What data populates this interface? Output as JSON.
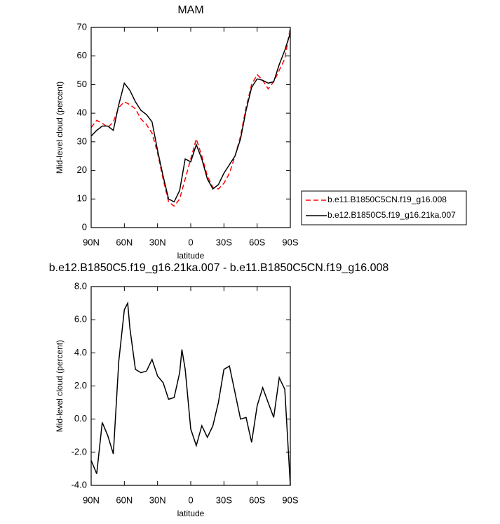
{
  "chart_data": [
    {
      "type": "line",
      "title": "MAM",
      "xlabel": "latitude",
      "ylabel": "Mid-level cloud (percent)",
      "x": [
        90,
        85,
        80,
        75,
        70,
        65,
        60,
        55,
        50,
        45,
        40,
        35,
        30,
        25,
        20,
        15,
        10,
        5,
        0,
        -5,
        -10,
        -15,
        -20,
        -25,
        -30,
        -35,
        -40,
        -45,
        -50,
        -55,
        -60,
        -65,
        -70,
        -75,
        -80,
        -85,
        -90
      ],
      "series": [
        {
          "name": "b.e11.B1850C5CN.f19_g16.008",
          "color": "#ff0000",
          "style": "dashed",
          "values": [
            35,
            37.5,
            36.5,
            35,
            37,
            42,
            44,
            43,
            41.5,
            38,
            36,
            33,
            26,
            17,
            9,
            7.5,
            10,
            17,
            24,
            31,
            25,
            18,
            14,
            13.5,
            15.5,
            19,
            25,
            32,
            42,
            50,
            53.5,
            51.5,
            48.5,
            51,
            55,
            59,
            70
          ]
        },
        {
          "name": "b.e12.B1850C5.f19_g16.21ka.007",
          "color": "#000000",
          "style": "solid",
          "values": [
            32,
            34,
            35.5,
            35.5,
            34,
            43,
            50.5,
            48,
            44,
            41,
            39.5,
            37,
            27,
            18,
            10,
            9,
            13,
            24,
            23,
            29,
            24,
            17,
            13.5,
            15,
            19,
            22,
            25,
            31,
            41,
            49,
            52,
            51.5,
            50.5,
            51,
            57,
            62,
            68
          ]
        }
      ],
      "xlim": [
        90,
        -90
      ],
      "xticks": [
        {
          "value": 90,
          "label": "90N"
        },
        {
          "value": 60,
          "label": "60N"
        },
        {
          "value": 30,
          "label": "30N"
        },
        0,
        {
          "value": -30,
          "label": "30S"
        },
        {
          "value": -60,
          "label": "60S"
        },
        {
          "value": -90,
          "label": "90S"
        }
      ],
      "ylim": [
        0,
        70
      ],
      "yticks": [
        0,
        10,
        20,
        30,
        40,
        50,
        60,
        70
      ],
      "legend": "right"
    },
    {
      "type": "line",
      "title": "b.e12.B1850C5.f19_g16.21ka.007 - b.e11.B1850C5CN.f19_g16.008",
      "xlabel": "latitude",
      "ylabel": "Mid-level cloud (percent)",
      "x": [
        90,
        85,
        80,
        75,
        70,
        65,
        60,
        57,
        55,
        50,
        45,
        40,
        35,
        30,
        25,
        20,
        15,
        10,
        8,
        5,
        0,
        -5,
        -10,
        -15,
        -20,
        -25,
        -30,
        -35,
        -40,
        -45,
        -50,
        -55,
        -60,
        -65,
        -70,
        -75,
        -80,
        -85,
        -90
      ],
      "values": [
        -2.5,
        -3.3,
        -0.2,
        -1.0,
        -2.1,
        3.5,
        6.6,
        7.0,
        5.5,
        3.0,
        2.8,
        2.9,
        3.6,
        2.6,
        2.2,
        1.2,
        1.3,
        2.8,
        4.2,
        3.0,
        -0.6,
        -1.6,
        -0.4,
        -1.1,
        -0.4,
        1.0,
        3.0,
        3.2,
        1.6,
        0.0,
        0.1,
        -1.4,
        0.8,
        1.9,
        1.0,
        0.1,
        2.5,
        1.8,
        -4.0
      ],
      "color": "#000000",
      "xlim": [
        90,
        -90
      ],
      "xticks": [
        {
          "value": 90,
          "label": "90N"
        },
        {
          "value": 60,
          "label": "60N"
        },
        {
          "value": 30,
          "label": "30N"
        },
        0,
        {
          "value": -30,
          "label": "30S"
        },
        {
          "value": -60,
          "label": "60S"
        },
        {
          "value": -90,
          "label": "90S"
        }
      ],
      "ylim": [
        -4,
        8
      ],
      "yticks": [
        {
          "value": -4,
          "label": "-4.0"
        },
        {
          "value": -2,
          "label": "-2.0"
        },
        {
          "value": 0,
          "label": "0.0"
        },
        {
          "value": 2,
          "label": "2.0"
        },
        {
          "value": 4,
          "label": "4.0"
        },
        {
          "value": 6,
          "label": "6.0"
        },
        {
          "value": 8,
          "label": "8.0"
        }
      ]
    }
  ]
}
